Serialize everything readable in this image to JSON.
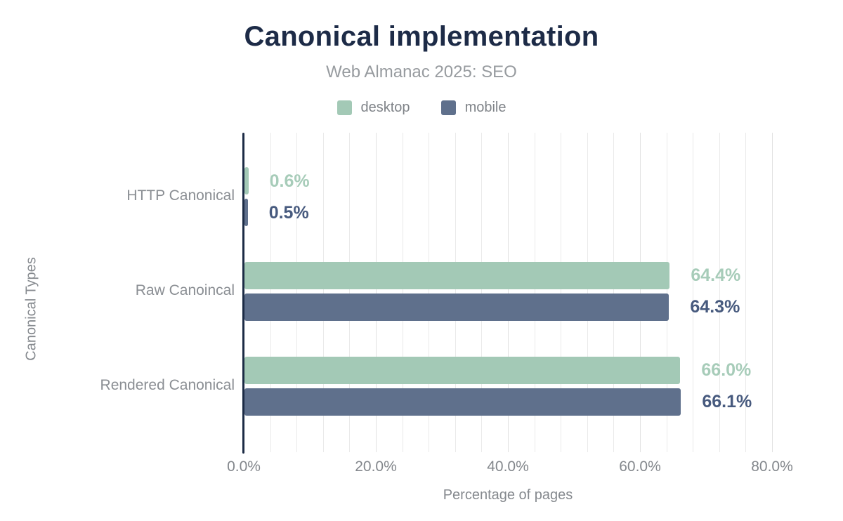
{
  "header": {
    "title": "Canonical implementation",
    "subtitle": "Web Almanac 2025: SEO"
  },
  "chart_data": {
    "type": "bar",
    "orientation": "horizontal",
    "title": "Canonical implementation",
    "subtitle": "Web Almanac 2025: SEO",
    "categories": [
      "HTTP Canonical",
      "Raw Canoincal",
      "Rendered Canonical"
    ],
    "series": [
      {
        "name": "desktop",
        "color": "#a3c9b6",
        "label_color": "#a7ccb9",
        "values": [
          0.6,
          64.4,
          66.0
        ],
        "value_labels": [
          "0.6%",
          "64.4%",
          "66.0%"
        ]
      },
      {
        "name": "mobile",
        "color": "#5f708c",
        "label_color": "#475a7e",
        "values": [
          0.5,
          64.3,
          66.1
        ],
        "value_labels": [
          "0.5%",
          "64.3%",
          "66.1%"
        ]
      }
    ],
    "xlabel": "Percentage of pages",
    "ylabel": "Canonical Types",
    "xlim": [
      0,
      80
    ],
    "xticks": [
      0,
      20,
      40,
      60,
      80
    ],
    "xtick_labels": [
      "0.0%",
      "20.0%",
      "40.0%",
      "60.0%",
      "80.0%"
    ],
    "grid": "vertical minor every 4%, on",
    "legend_position": "top center"
  },
  "colors": {
    "title": "#1d2b47",
    "subtitle": "#979b9f",
    "axis_line": "#1c2b45",
    "gridline": "#eaeaea",
    "muted_text": "#85898e",
    "background": "#ffffff"
  }
}
